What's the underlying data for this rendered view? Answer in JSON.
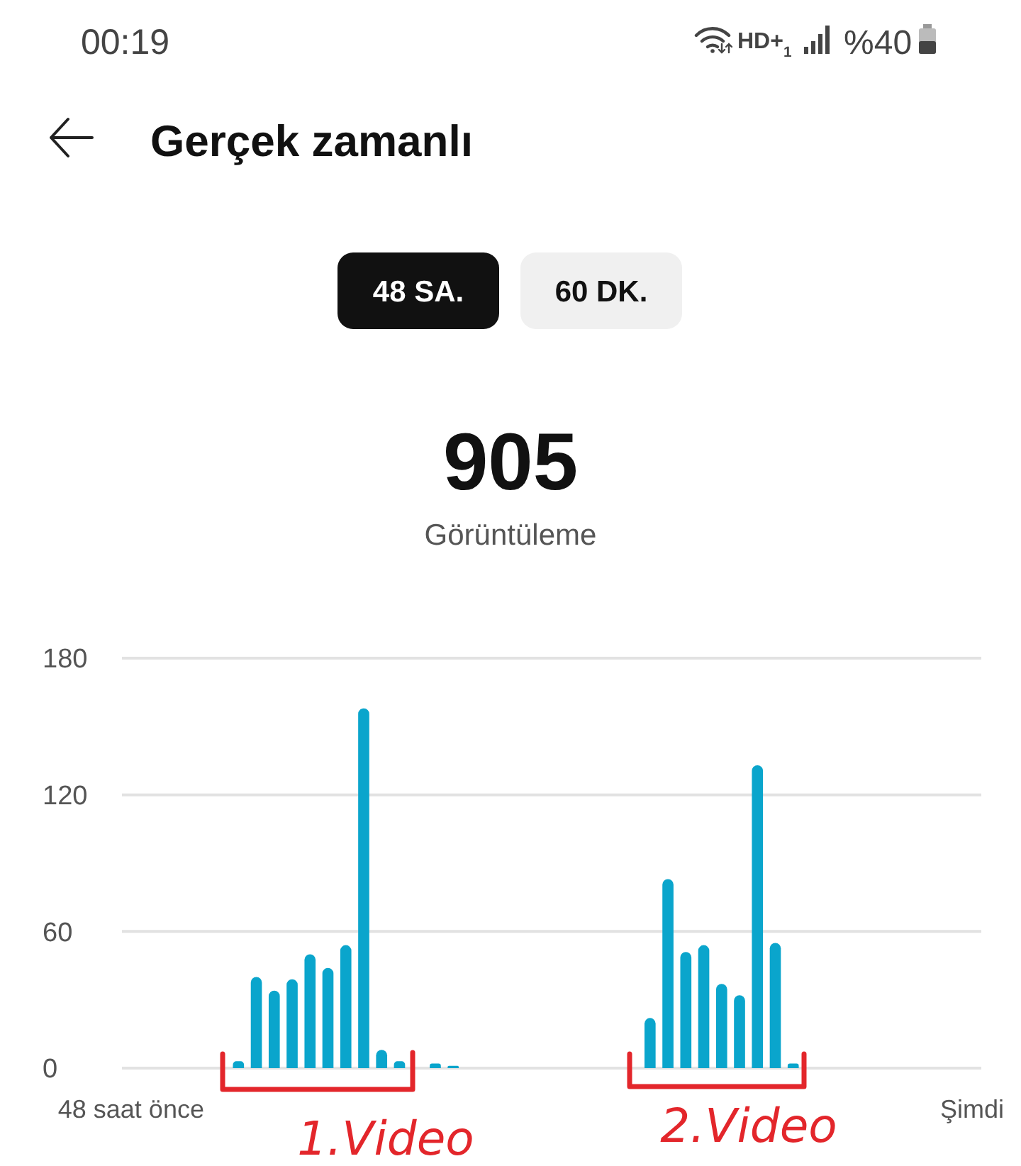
{
  "chart_data": {
    "type": "bar",
    "title": "Gerçek zamanlı",
    "categories": [
      "48 saat önce",
      null,
      null,
      null,
      null,
      null,
      null,
      null,
      null,
      null,
      null,
      null,
      null,
      null,
      null,
      null,
      null,
      null,
      null,
      null,
      null,
      null,
      null,
      null,
      null,
      null,
      null,
      null,
      null,
      null,
      null,
      null,
      null,
      null,
      null,
      null,
      null,
      null,
      null,
      null,
      null,
      null,
      null,
      null,
      null,
      null,
      null,
      "Şimdi"
    ],
    "values": [
      0,
      0,
      0,
      0,
      0,
      0,
      3,
      40,
      34,
      39,
      50,
      44,
      54,
      158,
      8,
      3,
      0,
      2,
      1,
      0,
      0,
      0,
      0,
      0,
      0,
      0,
      0,
      0,
      0,
      22,
      83,
      51,
      54,
      37,
      32,
      133,
      55,
      2,
      0,
      0,
      0,
      0,
      0,
      0,
      0,
      0,
      0,
      0
    ],
    "color": "#0aa5cc",
    "ylim": [
      0,
      180
    ],
    "yticks": [
      0,
      60,
      120,
      180
    ],
    "grid": "y",
    "annotations": [
      "00:19",
      "HD+$_{1}$",
      "%40",
      "48 SA.",
      "60 DK.",
      "905",
      "Görüntüleme",
      "1.Video",
      "2.Video"
    ]
  }
}
